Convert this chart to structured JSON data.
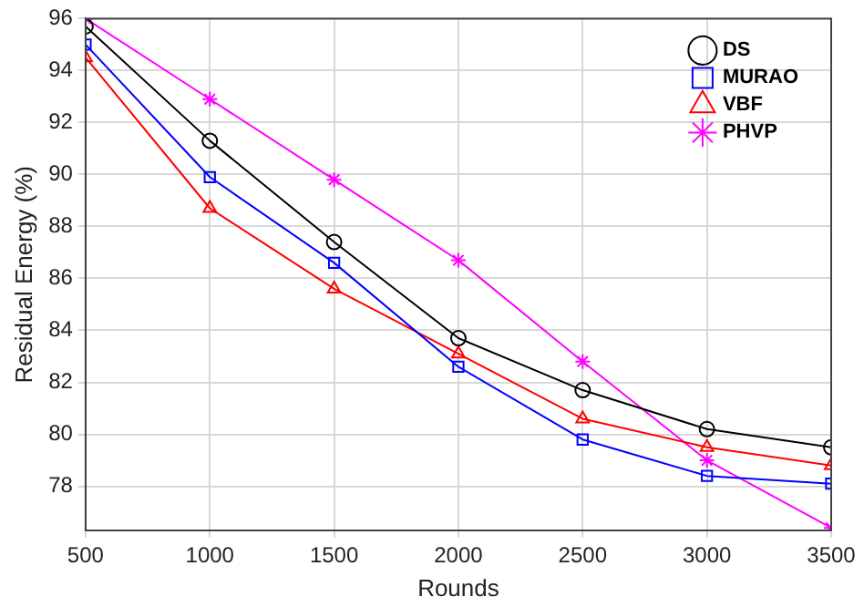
{
  "chart_data": {
    "type": "line",
    "xlabel": "Rounds",
    "ylabel": "Residual Energy (%)",
    "x": [
      500,
      1000,
      1500,
      2000,
      2500,
      3000,
      3500
    ],
    "xlim": [
      500,
      3500
    ],
    "xticks": [
      500,
      1000,
      1500,
      2000,
      2500,
      3000,
      3500
    ],
    "ylim": [
      76.3,
      96
    ],
    "yticks": [
      78,
      80,
      82,
      84,
      86,
      88,
      90,
      92,
      94,
      96
    ],
    "grid": true,
    "legend": "top right",
    "line_style": "solid",
    "series": [
      {
        "name": "DS",
        "color": "#000000",
        "marker": "circle",
        "values": [
          95.7,
          91.3,
          87.4,
          83.7,
          81.7,
          80.2,
          79.5
        ]
      },
      {
        "name": "MURAO",
        "color": "#0000ff",
        "marker": "square",
        "values": [
          95.0,
          89.9,
          86.6,
          82.6,
          79.8,
          78.4,
          78.1
        ]
      },
      {
        "name": "VBF",
        "color": "#ff0000",
        "marker": "triangle",
        "values": [
          94.5,
          88.7,
          85.6,
          83.1,
          80.6,
          79.5,
          78.8
        ]
      },
      {
        "name": "PHVP",
        "color": "#ff00ff",
        "marker": "cross",
        "values": [
          96.0,
          92.9,
          89.8,
          86.7,
          82.8,
          79.0,
          76.4
        ]
      }
    ]
  }
}
